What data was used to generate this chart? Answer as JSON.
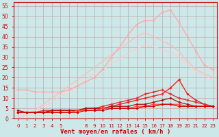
{
  "bg_color": "#cce8e8",
  "grid_color": "#c0a8a8",
  "xlabel": "Vent moyen/en rafales ( km/h )",
  "xlabel_color": "#cc0000",
  "xlabel_fontsize": 6.5,
  "ytick_vals": [
    0,
    5,
    10,
    15,
    20,
    25,
    30,
    35,
    40,
    45,
    50,
    55
  ],
  "xlim": [
    -0.5,
    23.5
  ],
  "ylim": [
    0,
    57
  ],
  "lines": [
    {
      "x": [
        0,
        1,
        2,
        3,
        4,
        5,
        6,
        7,
        8,
        9,
        10,
        11,
        12,
        13,
        14,
        15,
        16,
        17,
        18,
        19,
        20,
        21,
        22,
        23
      ],
      "y": [
        14,
        14,
        13,
        13,
        13,
        13,
        14,
        16,
        18,
        20,
        24,
        30,
        35,
        41,
        46,
        48,
        48,
        52,
        53,
        47,
        40,
        33,
        26,
        24
      ],
      "color": "#ffaaaa",
      "marker": "D",
      "markersize": 1.8,
      "linewidth": 1.0,
      "zorder": 3
    },
    {
      "x": [
        0,
        1,
        2,
        3,
        4,
        5,
        6,
        7,
        8,
        9,
        10,
        11,
        12,
        13,
        14,
        15,
        16,
        17,
        18,
        19,
        20,
        21,
        22,
        23
      ],
      "y": [
        0,
        2,
        4,
        7,
        10,
        13,
        16,
        19,
        22,
        25,
        28,
        31,
        34,
        37,
        40,
        42,
        40,
        38,
        36,
        33,
        28,
        24,
        22,
        20
      ],
      "color": "#ffbbbb",
      "marker": null,
      "markersize": 0,
      "linewidth": 0.9,
      "zorder": 2
    },
    {
      "x": [
        0,
        1,
        2,
        3,
        4,
        5,
        6,
        7,
        8,
        9,
        10,
        11,
        12,
        13,
        14,
        15,
        16,
        17,
        18,
        19,
        20,
        21,
        22,
        23
      ],
      "y": [
        0,
        2,
        4,
        6,
        8,
        11,
        13,
        16,
        19,
        22,
        24,
        27,
        29,
        32,
        34,
        36,
        35,
        34,
        32,
        30,
        27,
        23,
        21,
        19
      ],
      "color": "#ffcccc",
      "marker": null,
      "markersize": 0,
      "linewidth": 0.9,
      "zorder": 2
    },
    {
      "x": [
        0,
        1,
        2,
        3,
        4,
        5,
        6,
        7,
        8,
        9,
        10,
        11,
        12,
        13,
        14,
        15,
        16,
        17,
        18,
        19,
        20,
        21,
        22,
        23
      ],
      "y": [
        3,
        3,
        3,
        4,
        4,
        4,
        4,
        4,
        5,
        5,
        6,
        7,
        8,
        9,
        10,
        12,
        13,
        14,
        12,
        10,
        9,
        8,
        7,
        6
      ],
      "color": "#dd3333",
      "marker": "D",
      "markersize": 1.8,
      "linewidth": 1.0,
      "zorder": 4
    },
    {
      "x": [
        0,
        1,
        2,
        3,
        4,
        5,
        6,
        7,
        8,
        9,
        10,
        11,
        12,
        13,
        14,
        15,
        16,
        17,
        18,
        19,
        20,
        21,
        22,
        23
      ],
      "y": [
        3,
        3,
        3,
        3,
        4,
        4,
        4,
        4,
        5,
        5,
        5,
        6,
        7,
        8,
        9,
        10,
        11,
        12,
        15,
        19,
        12,
        9,
        7,
        6
      ],
      "color": "#ee2222",
      "marker": "D",
      "markersize": 1.8,
      "linewidth": 1.0,
      "zorder": 4
    },
    {
      "x": [
        0,
        1,
        2,
        3,
        4,
        5,
        6,
        7,
        8,
        9,
        10,
        11,
        12,
        13,
        14,
        15,
        16,
        17,
        18,
        19,
        20,
        21,
        22,
        23
      ],
      "y": [
        4,
        3,
        3,
        3,
        4,
        4,
        4,
        4,
        5,
        5,
        5,
        6,
        6,
        6,
        7,
        7,
        8,
        9,
        10,
        8,
        7,
        6,
        6,
        6
      ],
      "color": "#aa1111",
      "marker": "D",
      "markersize": 1.8,
      "linewidth": 0.9,
      "zorder": 4
    },
    {
      "x": [
        0,
        1,
        2,
        3,
        4,
        5,
        6,
        7,
        8,
        9,
        10,
        11,
        12,
        13,
        14,
        15,
        16,
        17,
        18,
        19,
        20,
        21,
        22,
        23
      ],
      "y": [
        3,
        3,
        3,
        3,
        3,
        3,
        3,
        4,
        4,
        4,
        5,
        5,
        5,
        5,
        6,
        6,
        7,
        7,
        7,
        7,
        6,
        6,
        6,
        6
      ],
      "color": "#ff4444",
      "marker": "D",
      "markersize": 1.8,
      "linewidth": 0.9,
      "zorder": 4
    },
    {
      "x": [
        0,
        1,
        2,
        3,
        4,
        5,
        6,
        7,
        8,
        9,
        10,
        11,
        12,
        13,
        14,
        15,
        16,
        17,
        18,
        19,
        20,
        21,
        22,
        23
      ],
      "y": [
        3,
        3,
        3,
        3,
        3,
        3,
        3,
        3,
        4,
        4,
        4,
        5,
        5,
        5,
        5,
        6,
        6,
        7,
        7,
        6,
        6,
        6,
        6,
        6
      ],
      "color": "#cc0000",
      "marker": "D",
      "markersize": 1.8,
      "linewidth": 0.9,
      "zorder": 4
    }
  ],
  "xtick_positions": [
    0,
    1,
    2,
    3,
    4,
    5,
    8,
    9,
    10,
    11,
    12,
    13,
    14,
    15,
    16,
    17,
    18,
    19,
    20,
    21,
    22,
    23
  ],
  "xtick_labels": [
    "0",
    "1",
    "2",
    "3",
    "4",
    "5",
    "8",
    "9",
    "10",
    "11",
    "12",
    "13",
    "14",
    "15",
    "16",
    "17",
    "18",
    "19",
    "20",
    "21",
    "22",
    "23"
  ]
}
